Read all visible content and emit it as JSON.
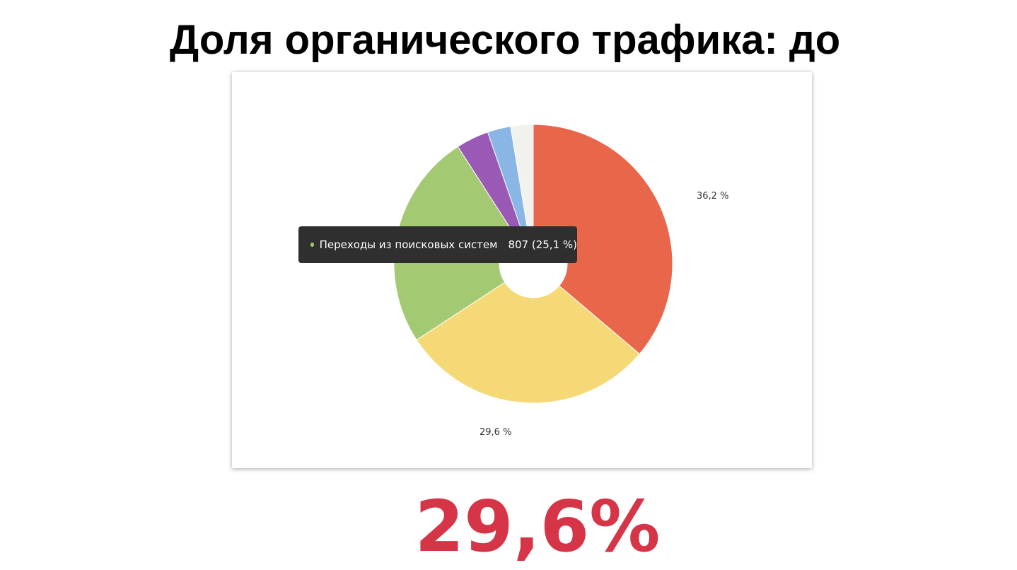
{
  "slide": {
    "title": "Доля органического трафика: до",
    "highlight_value": "29,6%"
  },
  "tooltip": {
    "label": "Переходы из поисковых систем",
    "value": "807 (25,1 %)",
    "color": "#a3c972"
  },
  "chart_data": {
    "type": "pie",
    "donut": true,
    "title": "",
    "start_angle_deg": 0,
    "direction": "clockwise",
    "slices": [
      {
        "value": 36.2,
        "color": "#e8674b",
        "label": "36,2 %"
      },
      {
        "value": 29.6,
        "color": "#f6d977",
        "label": "29,6 %"
      },
      {
        "value": 25.1,
        "color": "#a3c972",
        "label": ""
      },
      {
        "value": 3.8,
        "color": "#9b59b6",
        "label": ""
      },
      {
        "value": 2.7,
        "color": "#8ab6e6",
        "label": ""
      },
      {
        "value": 2.6,
        "color": "#f1f1ee",
        "label": ""
      }
    ],
    "annotations": [
      "Переходы из поисковых систем 807 (25,1 %)"
    ]
  }
}
